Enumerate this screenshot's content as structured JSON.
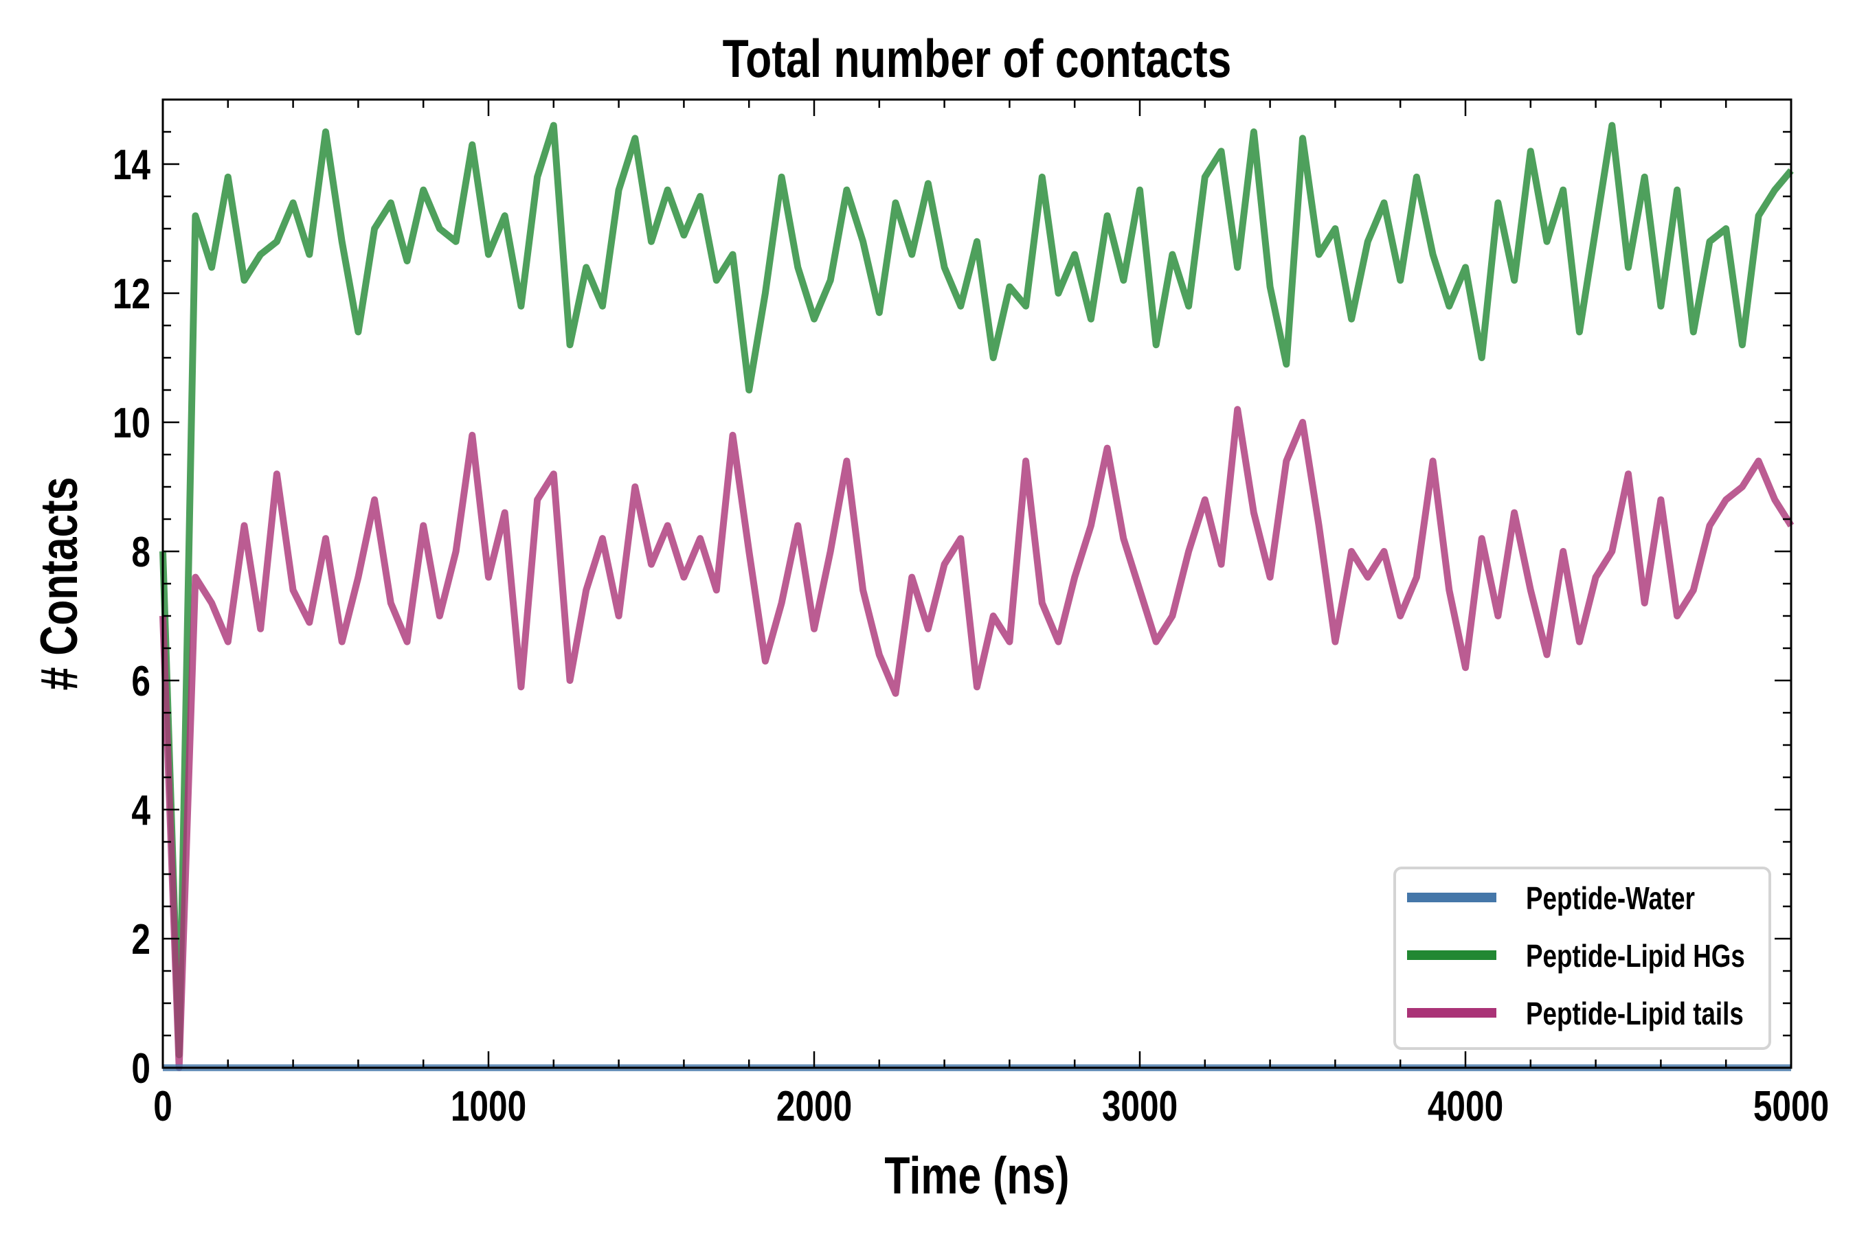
{
  "chart_data": {
    "type": "line",
    "title": "Total number of contacts",
    "xlabel": "Time (ns)",
    "ylabel": "# Contacts",
    "xlim": [
      0,
      5000
    ],
    "ylim": [
      0,
      15
    ],
    "xticks": [
      0,
      1000,
      2000,
      3000,
      4000,
      5000
    ],
    "yticks": [
      0,
      2,
      4,
      6,
      8,
      10,
      12,
      14
    ],
    "grid": false,
    "legend_position": "bottom-right",
    "x": [
      0,
      50,
      100,
      150,
      200,
      250,
      300,
      350,
      400,
      450,
      500,
      550,
      600,
      650,
      700,
      750,
      800,
      850,
      900,
      950,
      1000,
      1050,
      1100,
      1150,
      1200,
      1250,
      1300,
      1350,
      1400,
      1450,
      1500,
      1550,
      1600,
      1650,
      1700,
      1750,
      1800,
      1850,
      1900,
      1950,
      2000,
      2050,
      2100,
      2150,
      2200,
      2250,
      2300,
      2350,
      2400,
      2450,
      2500,
      2550,
      2600,
      2650,
      2700,
      2750,
      2800,
      2850,
      2900,
      2950,
      3000,
      3050,
      3100,
      3150,
      3200,
      3250,
      3300,
      3350,
      3400,
      3450,
      3500,
      3550,
      3600,
      3650,
      3700,
      3750,
      3800,
      3850,
      3900,
      3950,
      4000,
      4050,
      4100,
      4150,
      4200,
      4250,
      4300,
      4350,
      4400,
      4450,
      4500,
      4550,
      4600,
      4650,
      4700,
      4750,
      4800,
      4850,
      4900,
      4950,
      5000
    ],
    "series": [
      {
        "name": "Peptide-Water",
        "color": "#4577a9",
        "values": [
          0,
          0,
          0,
          0,
          0,
          0,
          0,
          0,
          0,
          0,
          0,
          0,
          0,
          0,
          0,
          0,
          0,
          0,
          0,
          0,
          0,
          0,
          0,
          0,
          0,
          0,
          0,
          0,
          0,
          0,
          0,
          0,
          0,
          0,
          0,
          0,
          0,
          0,
          0,
          0,
          0,
          0,
          0,
          0,
          0,
          0,
          0,
          0,
          0,
          0,
          0,
          0,
          0,
          0,
          0,
          0,
          0,
          0,
          0,
          0,
          0,
          0,
          0,
          0,
          0,
          0,
          0,
          0,
          0,
          0,
          0,
          0,
          0,
          0,
          0,
          0,
          0,
          0,
          0,
          0,
          0,
          0,
          0,
          0,
          0,
          0,
          0,
          0,
          0,
          0,
          0,
          0,
          0,
          0,
          0,
          0,
          0,
          0,
          0,
          0,
          0
        ]
      },
      {
        "name": "Peptide-Lipid HGs",
        "color": "#228833",
        "values": [
          8.0,
          0.2,
          13.2,
          12.4,
          13.8,
          12.2,
          12.6,
          12.8,
          13.4,
          12.6,
          14.5,
          12.8,
          11.4,
          13.0,
          13.4,
          12.5,
          13.6,
          13.0,
          12.8,
          14.3,
          12.6,
          13.2,
          11.8,
          13.8,
          14.6,
          11.2,
          12.4,
          11.8,
          13.6,
          14.4,
          12.8,
          13.6,
          12.9,
          13.5,
          12.2,
          12.6,
          10.5,
          12.0,
          13.8,
          12.4,
          11.6,
          12.2,
          13.6,
          12.8,
          11.7,
          13.4,
          12.6,
          13.7,
          12.4,
          11.8,
          12.8,
          11.0,
          12.1,
          11.8,
          13.8,
          12.0,
          12.6,
          11.6,
          13.2,
          12.2,
          13.6,
          11.2,
          12.6,
          11.8,
          13.8,
          14.2,
          12.4,
          14.5,
          12.1,
          10.9,
          14.4,
          12.6,
          13.0,
          11.6,
          12.8,
          13.4,
          12.2,
          13.8,
          12.6,
          11.8,
          12.4,
          11.0,
          13.4,
          12.2,
          14.2,
          12.8,
          13.6,
          11.4,
          13.0,
          14.6,
          12.4,
          13.8,
          11.8,
          13.6,
          11.4,
          12.8,
          13.0,
          11.2,
          13.2,
          13.6,
          13.9
        ]
      },
      {
        "name": "Peptide-Lipid tails",
        "color": "#aa3377",
        "values": [
          7.0,
          0.0,
          7.6,
          7.2,
          6.6,
          8.4,
          6.8,
          9.2,
          7.4,
          6.9,
          8.2,
          6.6,
          7.6,
          8.8,
          7.2,
          6.6,
          8.4,
          7.0,
          8.0,
          9.8,
          7.6,
          8.6,
          5.9,
          8.8,
          9.2,
          6.0,
          7.4,
          8.2,
          7.0,
          9.0,
          7.8,
          8.4,
          7.6,
          8.2,
          7.4,
          9.8,
          8.0,
          6.3,
          7.2,
          8.4,
          6.8,
          8.0,
          9.4,
          7.4,
          6.4,
          5.8,
          7.6,
          6.8,
          7.8,
          8.2,
          5.9,
          7.0,
          6.6,
          9.4,
          7.2,
          6.6,
          7.6,
          8.4,
          9.6,
          8.2,
          7.4,
          6.6,
          7.0,
          8.0,
          8.8,
          7.8,
          10.2,
          8.6,
          7.6,
          9.4,
          10.0,
          8.4,
          6.6,
          8.0,
          7.6,
          8.0,
          7.0,
          7.6,
          9.4,
          7.4,
          6.2,
          8.2,
          7.0,
          8.6,
          7.4,
          6.4,
          8.0,
          6.6,
          7.6,
          8.0,
          9.2,
          7.2,
          8.8,
          7.0,
          7.4,
          8.4,
          8.8,
          9.0,
          9.4,
          8.8,
          8.4
        ]
      }
    ]
  }
}
